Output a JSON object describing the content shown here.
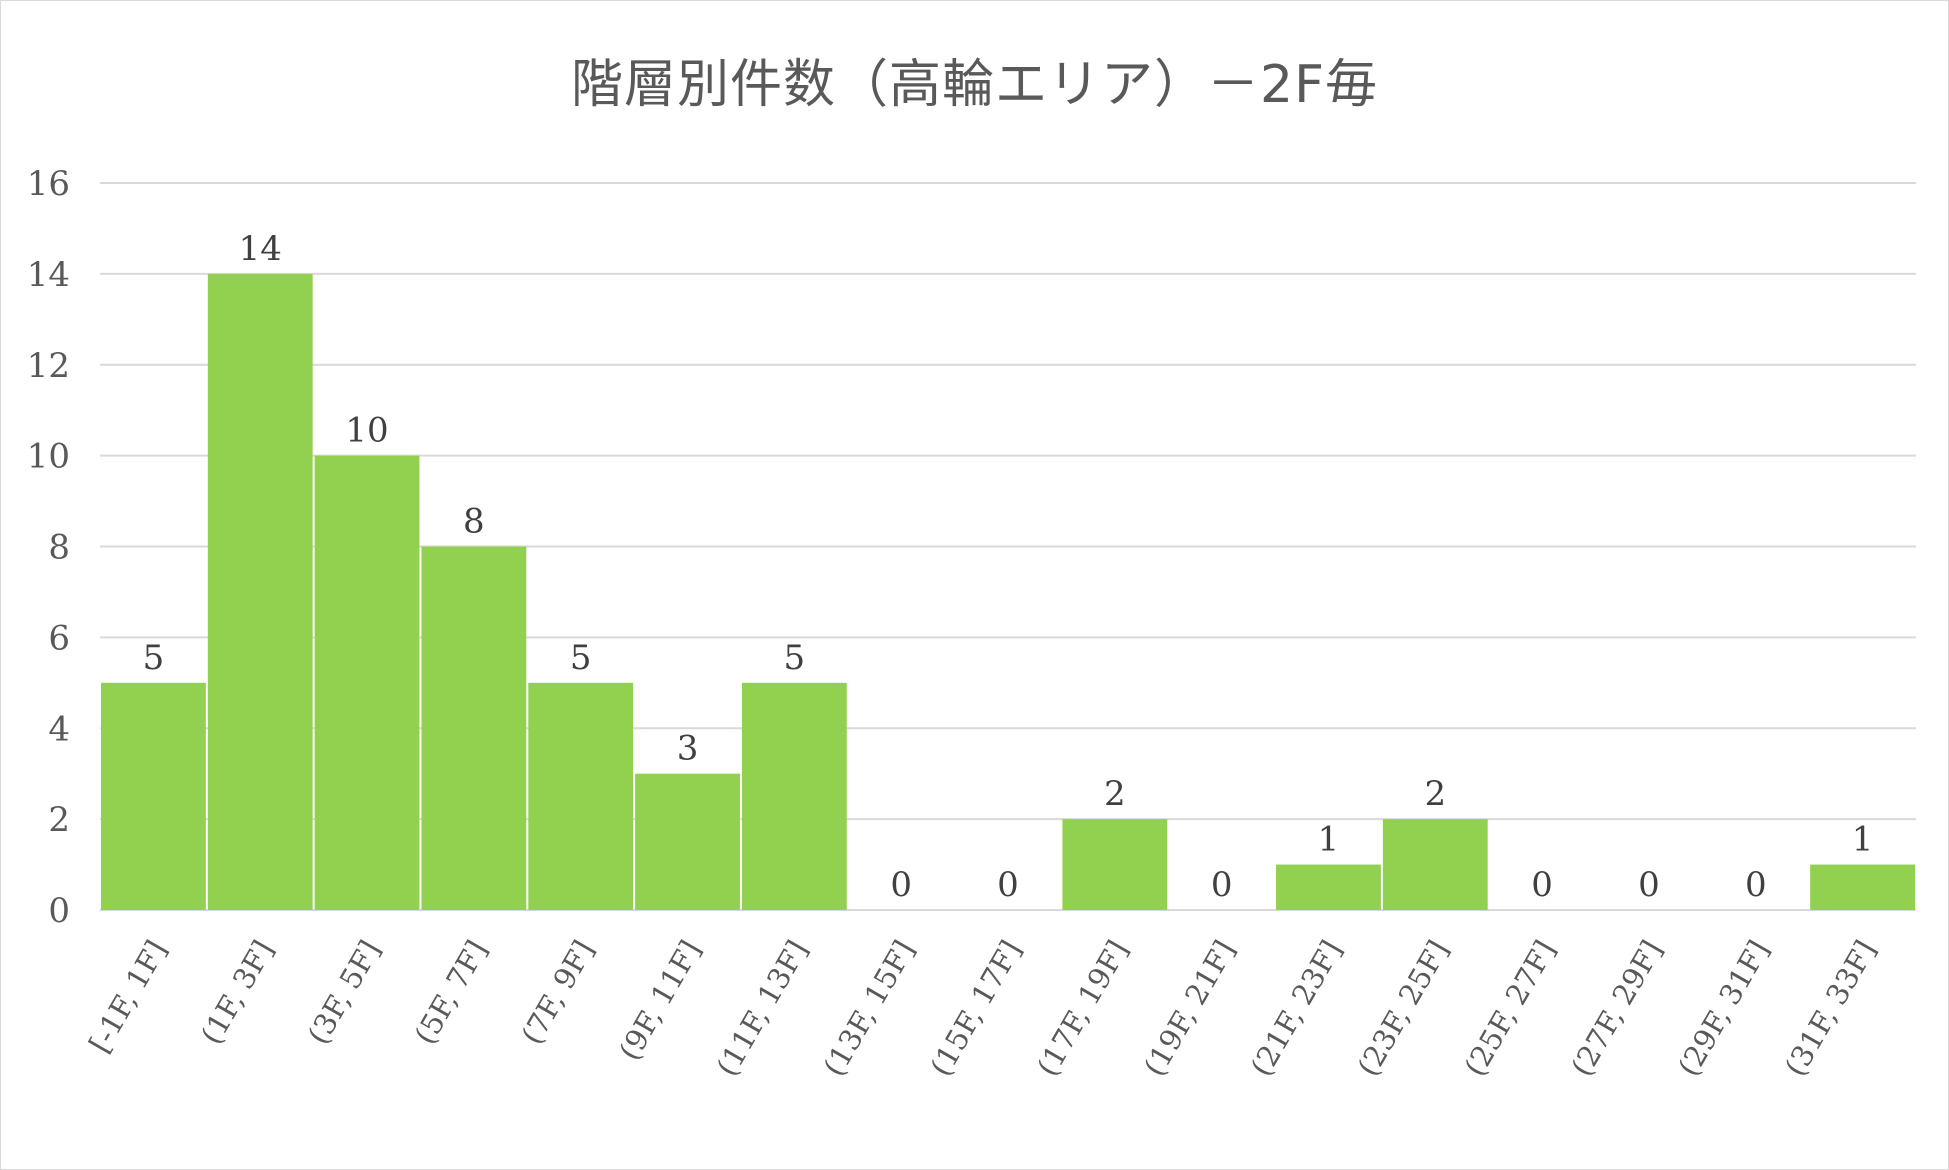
{
  "chart_data": {
    "type": "bar",
    "title": "階層別件数（高輪エリア）－2F毎",
    "xlabel": "",
    "ylabel": "",
    "categories": [
      "[-1F, 1F]",
      "(1F, 3F]",
      "(3F, 5F]",
      "(5F, 7F]",
      "(7F, 9F]",
      "(9F, 11F]",
      "(11F, 13F]",
      "(13F, 15F]",
      "(15F, 17F]",
      "(17F, 19F]",
      "(19F, 21F]",
      "(21F, 23F]",
      "(23F, 25F]",
      "(25F, 27F]",
      "(27F, 29F]",
      "(29F, 31F]",
      "(31F, 33F]"
    ],
    "values": [
      5,
      14,
      10,
      8,
      5,
      3,
      5,
      0,
      0,
      2,
      0,
      1,
      2,
      0,
      0,
      0,
      1
    ],
    "ylim": [
      0,
      16
    ],
    "yticks": [
      0,
      2,
      4,
      6,
      8,
      10,
      12,
      14,
      16
    ],
    "grid": true,
    "data_labels": true,
    "colors": {
      "bar": "#92D050",
      "grid": "#d9d9d9",
      "text": "#595959"
    }
  }
}
